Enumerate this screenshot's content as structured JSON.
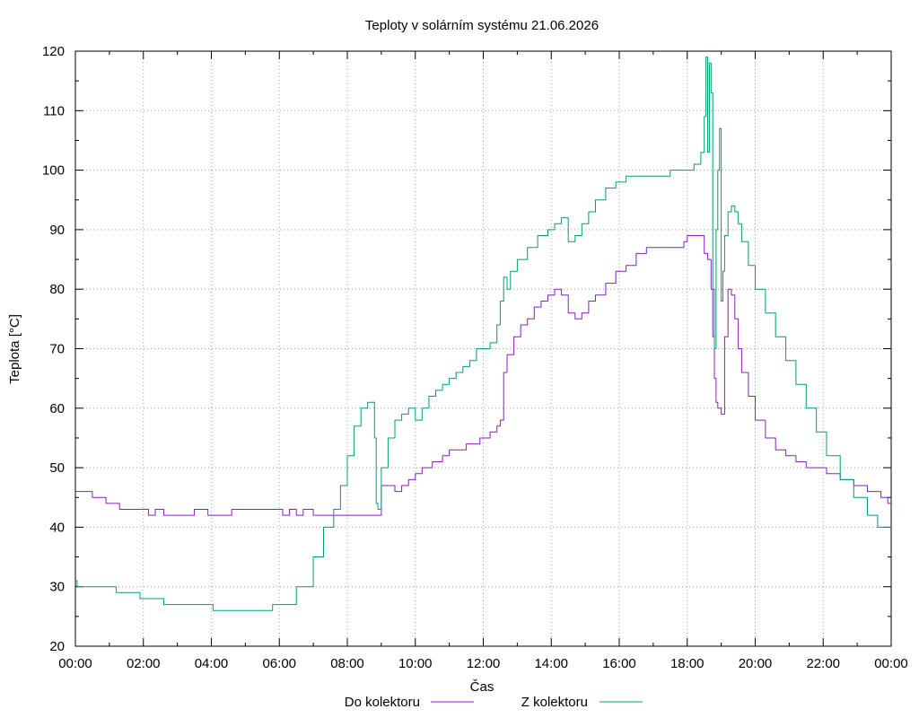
{
  "chart_data": {
    "type": "line",
    "title": "Teploty v solárním systému 21.06.2026",
    "xlabel": "Čas",
    "ylabel": "Teplota [°C]",
    "x_unit": "hours",
    "xlim": [
      0,
      24
    ],
    "ylim": [
      20,
      120
    ],
    "grid": true,
    "legend_position": "bottom",
    "x_ticks": [
      "00:00",
      "02:00",
      "04:00",
      "06:00",
      "08:00",
      "10:00",
      "12:00",
      "14:00",
      "16:00",
      "18:00",
      "20:00",
      "22:00",
      "00:00"
    ],
    "y_ticks": [
      "20",
      "30",
      "40",
      "50",
      "60",
      "70",
      "80",
      "90",
      "100",
      "110",
      "120"
    ],
    "series": [
      {
        "name": "Do kolektoru",
        "color": "#8a1fc0",
        "x": [
          0,
          0.45,
          0.5,
          0.85,
          0.9,
          1.25,
          1.3,
          2.05,
          2.15,
          2.3,
          2.35,
          2.6,
          3.0,
          3.1,
          3.5,
          3.9,
          4.2,
          4.5,
          4.6,
          5.0,
          5.5,
          6.0,
          6.1,
          6.3,
          6.5,
          6.7,
          7.0,
          7.3,
          7.5,
          7.6,
          7.8,
          8.2,
          8.6,
          8.9,
          9.0,
          9.2,
          9.4,
          9.5,
          9.6,
          9.8,
          10.0,
          10.2,
          10.5,
          10.8,
          11.0,
          11.5,
          11.9,
          12.2,
          12.4,
          12.5,
          12.6,
          12.7,
          12.9,
          13.1,
          13.3,
          13.5,
          13.7,
          13.9,
          14.1,
          14.3,
          14.5,
          14.7,
          14.9,
          15.1,
          15.3,
          15.6,
          15.9,
          16.2,
          16.5,
          16.8,
          17.1,
          17.5,
          17.9,
          18.0,
          18.2,
          18.4,
          18.5,
          18.6,
          18.7,
          18.75,
          18.8,
          18.85,
          18.9,
          19.0,
          19.1,
          19.2,
          19.3,
          19.4,
          19.5,
          19.6,
          19.8,
          20.0,
          20.3,
          20.6,
          20.9,
          21.2,
          21.5,
          21.8,
          22.1,
          22.5,
          22.9,
          23.3,
          23.7,
          23.9,
          24.0
        ],
        "values": [
          46,
          46,
          45,
          45,
          44,
          44,
          43,
          43,
          42,
          42,
          43,
          42,
          42,
          42,
          43,
          42,
          42,
          42,
          43,
          43,
          43,
          43,
          42,
          43,
          42,
          43,
          42,
          42,
          42,
          42,
          42,
          42,
          42,
          42,
          47,
          47,
          46,
          46,
          47,
          48,
          49,
          50,
          51,
          52,
          53,
          54,
          55,
          56,
          57,
          58,
          66,
          69,
          72,
          74,
          75,
          77,
          78,
          79,
          80,
          79,
          76,
          75,
          76,
          78,
          79,
          81,
          83,
          84,
          86,
          87,
          87,
          87,
          88,
          89,
          89,
          89,
          86,
          85,
          80,
          72,
          65,
          61,
          60,
          59,
          72,
          80,
          79,
          75,
          70,
          66,
          62,
          58,
          55,
          53,
          52,
          51,
          50,
          50,
          49,
          48,
          47,
          46,
          45,
          44,
          44
        ]
      },
      {
        "name": "Z kolektoru",
        "color": "#009e73",
        "x": [
          0,
          0.05,
          1.1,
          1.2,
          1.8,
          1.9,
          2.5,
          2.6,
          3.0,
          4.0,
          4.05,
          4.5,
          5.0,
          5.5,
          5.8,
          6.0,
          6.5,
          7.0,
          7.3,
          7.6,
          7.8,
          8.0,
          8.2,
          8.4,
          8.6,
          8.75,
          8.8,
          8.85,
          8.9,
          9.0,
          9.2,
          9.4,
          9.6,
          9.8,
          10.0,
          10.2,
          10.4,
          10.6,
          10.8,
          11.0,
          11.2,
          11.4,
          11.6,
          11.8,
          12.0,
          12.2,
          12.4,
          12.5,
          12.6,
          12.7,
          12.8,
          13.0,
          13.3,
          13.6,
          13.9,
          14.1,
          14.3,
          14.5,
          14.7,
          14.9,
          15.1,
          15.3,
          15.6,
          15.9,
          16.2,
          16.5,
          16.8,
          17.1,
          17.5,
          17.9,
          18.2,
          18.4,
          18.5,
          18.55,
          18.6,
          18.65,
          18.7,
          18.75,
          18.8,
          18.85,
          18.9,
          18.95,
          19.0,
          19.05,
          19.1,
          19.2,
          19.3,
          19.4,
          19.5,
          19.6,
          19.8,
          20.0,
          20.3,
          20.6,
          20.9,
          21.2,
          21.5,
          21.8,
          22.1,
          22.5,
          22.9,
          23.3,
          23.6,
          23.8,
          24.0
        ],
        "values": [
          31,
          30,
          30,
          29,
          29,
          28,
          28,
          27,
          27,
          27,
          26,
          26,
          26,
          26,
          27,
          27,
          30,
          35,
          40,
          43,
          47,
          52,
          57,
          60,
          61,
          61,
          55,
          44,
          43,
          50,
          55,
          58,
          59,
          60,
          58,
          60,
          62,
          63,
          64,
          65,
          66,
          67,
          68,
          70,
          70,
          71,
          74,
          78,
          82,
          80,
          83,
          85,
          87,
          89,
          90,
          91,
          92,
          88,
          89,
          91,
          93,
          95,
          97,
          98,
          99,
          99,
          99,
          99,
          100,
          100,
          101,
          103,
          109,
          119,
          103,
          118,
          113,
          80,
          70,
          90,
          100,
          107,
          78,
          83,
          89,
          93,
          94,
          93,
          91,
          88,
          84,
          80,
          76,
          72,
          68,
          64,
          60,
          56,
          52,
          48,
          45,
          42,
          40,
          40,
          40
        ]
      }
    ]
  }
}
